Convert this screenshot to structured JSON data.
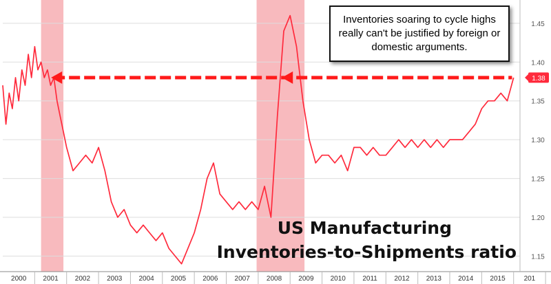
{
  "chart_data": {
    "type": "line",
    "title_line1": "US Manufacturing",
    "title_line2": "Inventories-to-Shipments ratio",
    "annotation": "Inventories soaring to cycle highs really can't be justified by foreign or domestic arguments.",
    "current_value_label": "1.38",
    "reference_level": 1.38,
    "x_tick_labels": [
      "2000",
      "2001",
      "2002",
      "2003",
      "2004",
      "2005",
      "2006",
      "2007",
      "2008",
      "2009",
      "2010",
      "2011",
      "2012",
      "2013",
      "2014",
      "2015",
      "201"
    ],
    "y_tick_labels": [
      "1.15",
      "1.20",
      "1.25",
      "1.30",
      "1.35",
      "1.40",
      "1.45"
    ],
    "ylim": [
      1.13,
      1.48
    ],
    "xlim": [
      2000.0,
      2016.2
    ],
    "recessions": [
      [
        2001.2,
        2001.9
      ],
      [
        2007.95,
        2009.45
      ]
    ],
    "colors": {
      "line": "#ff2a3c",
      "recession": "#f5a3a8",
      "arrow": "#ff1a1a",
      "value_badge": "#ff2a3c"
    },
    "series": [
      {
        "x": [
          2000.0,
          2000.1,
          2000.2,
          2000.3,
          2000.4,
          2000.5,
          2000.6,
          2000.7,
          2000.8,
          2000.9,
          2001.0,
          2001.1,
          2001.2,
          2001.3,
          2001.4,
          2001.5,
          2001.6,
          2001.7,
          2001.8,
          2001.9,
          2002.0,
          2002.2,
          2002.4,
          2002.6,
          2002.8,
          2003.0,
          2003.2,
          2003.4,
          2003.6,
          2003.8,
          2004.0,
          2004.2,
          2004.4,
          2004.6,
          2004.8,
          2005.0,
          2005.2,
          2005.4,
          2005.6,
          2005.8,
          2006.0,
          2006.2,
          2006.4,
          2006.6,
          2006.8,
          2007.0,
          2007.2,
          2007.4,
          2007.6,
          2007.8,
          2008.0,
          2008.2,
          2008.4,
          2008.6,
          2008.8,
          2009.0,
          2009.2,
          2009.4,
          2009.6,
          2009.8,
          2010.0,
          2010.2,
          2010.4,
          2010.6,
          2010.8,
          2011.0,
          2011.2,
          2011.4,
          2011.6,
          2011.8,
          2012.0,
          2012.2,
          2012.4,
          2012.6,
          2012.8,
          2013.0,
          2013.2,
          2013.4,
          2013.6,
          2013.8,
          2014.0,
          2014.2,
          2014.4,
          2014.6,
          2014.8,
          2015.0,
          2015.2,
          2015.4,
          2015.6,
          2015.8,
          2016.0
        ],
        "y": [
          1.37,
          1.32,
          1.36,
          1.34,
          1.38,
          1.35,
          1.39,
          1.37,
          1.41,
          1.38,
          1.42,
          1.39,
          1.4,
          1.38,
          1.39,
          1.37,
          1.38,
          1.35,
          1.33,
          1.31,
          1.29,
          1.26,
          1.27,
          1.28,
          1.27,
          1.29,
          1.26,
          1.22,
          1.2,
          1.21,
          1.19,
          1.18,
          1.19,
          1.18,
          1.17,
          1.18,
          1.16,
          1.15,
          1.14,
          1.16,
          1.18,
          1.21,
          1.25,
          1.27,
          1.23,
          1.22,
          1.21,
          1.22,
          1.21,
          1.22,
          1.21,
          1.24,
          1.2,
          1.33,
          1.44,
          1.46,
          1.42,
          1.35,
          1.3,
          1.27,
          1.28,
          1.28,
          1.27,
          1.28,
          1.26,
          1.29,
          1.29,
          1.28,
          1.29,
          1.28,
          1.28,
          1.29,
          1.3,
          1.29,
          1.3,
          1.29,
          1.3,
          1.29,
          1.3,
          1.29,
          1.3,
          1.3,
          1.3,
          1.31,
          1.32,
          1.34,
          1.35,
          1.35,
          1.36,
          1.35,
          1.38
        ]
      }
    ]
  }
}
